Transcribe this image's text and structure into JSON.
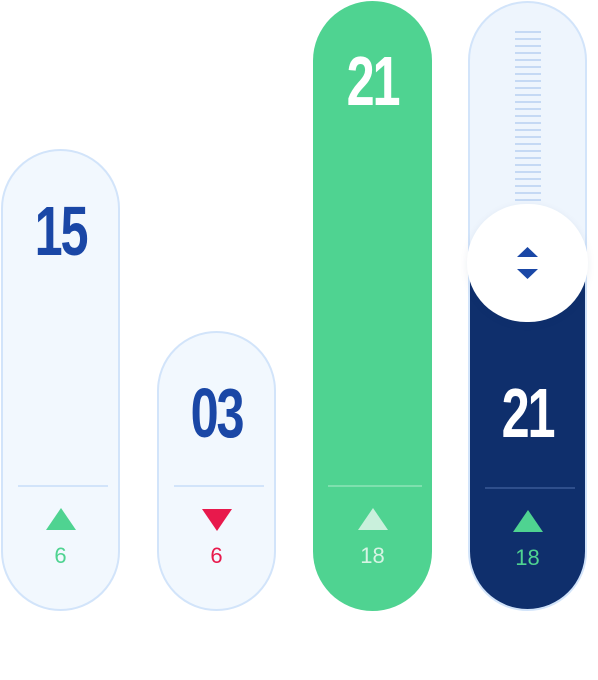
{
  "cards": [
    {
      "value": "15",
      "trend": "up",
      "change": "6",
      "style": "light"
    },
    {
      "value": "03",
      "trend": "down",
      "change": "6",
      "style": "light"
    },
    {
      "value": "21",
      "trend": "up",
      "change": "18",
      "style": "green"
    },
    {
      "value": "21",
      "trend": "up",
      "change": "18",
      "style": "navy-slider"
    }
  ],
  "colors": {
    "navy": "#0f2f6c",
    "blue_text": "#1a47a6",
    "green": "#4fd391",
    "red": "#e8194c",
    "light_bg": "#f2f8fe",
    "border": "#d2e4fa"
  },
  "icons": {
    "up": "triangle-up-icon",
    "down": "triangle-down-icon",
    "slider": "up-down-arrows-icon"
  }
}
